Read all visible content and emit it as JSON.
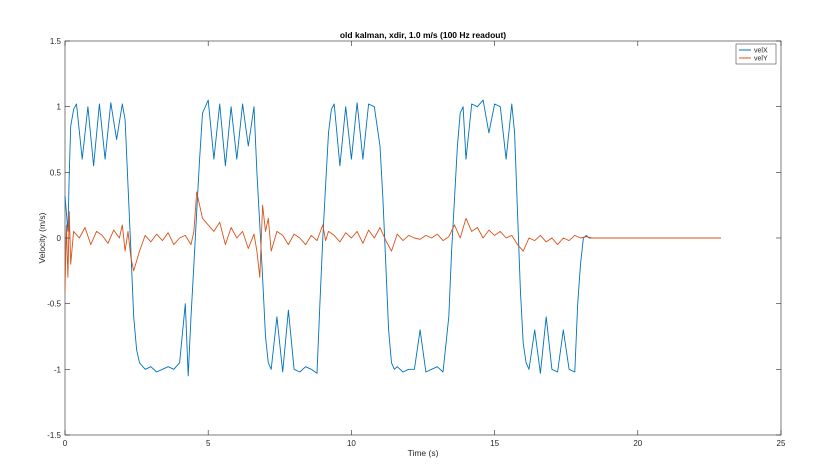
{
  "chart_data": {
    "type": "line",
    "title": "old kalman, xdir, 1.0 m/s (100 Hz readout)",
    "xlabel": "Time (s)",
    "ylabel": "Velocity (m/s)",
    "xlim": [
      0,
      25
    ],
    "ylim": [
      -1.5,
      1.5
    ],
    "xticks": [
      0,
      5,
      10,
      15,
      20,
      25
    ],
    "yticks": [
      -1.5,
      -1,
      -0.5,
      0,
      0.5,
      1,
      1.5
    ],
    "xtick_labels": [
      "0",
      "5",
      "10",
      "15",
      "20",
      "25"
    ],
    "ytick_labels": [
      "-1.5",
      "-1",
      "-0.5",
      "0",
      "0.5",
      "1",
      "1.5"
    ],
    "grid": false,
    "legend": {
      "placement": "top-right"
    },
    "series": [
      {
        "name": "velX",
        "color": "#0072BD",
        "x": [
          0,
          0.1,
          0.15,
          0.2,
          0.3,
          0.4,
          0.6,
          0.8,
          1.0,
          1.2,
          1.4,
          1.6,
          1.8,
          2.0,
          2.1,
          2.2,
          2.3,
          2.4,
          2.5,
          2.6,
          2.8,
          3.0,
          3.2,
          3.4,
          3.6,
          3.8,
          4.0,
          4.2,
          4.3,
          4.4,
          4.5,
          4.6,
          4.7,
          4.8,
          5.0,
          5.2,
          5.4,
          5.6,
          5.8,
          6.0,
          6.2,
          6.4,
          6.6,
          6.7,
          6.8,
          6.9,
          7.0,
          7.1,
          7.2,
          7.4,
          7.6,
          7.8,
          8.0,
          8.2,
          8.4,
          8.6,
          8.8,
          8.9,
          9.0,
          9.1,
          9.2,
          9.3,
          9.4,
          9.6,
          9.8,
          10.0,
          10.2,
          10.4,
          10.6,
          10.8,
          11.0,
          11.1,
          11.2,
          11.3,
          11.4,
          11.5,
          11.6,
          11.8,
          12.0,
          12.2,
          12.4,
          12.6,
          12.8,
          13.0,
          13.2,
          13.4,
          13.5,
          13.6,
          13.7,
          13.8,
          13.9,
          14.0,
          14.2,
          14.4,
          14.6,
          14.8,
          15.0,
          15.2,
          15.4,
          15.6,
          15.7,
          15.8,
          15.9,
          16.0,
          16.1,
          16.2,
          16.4,
          16.6,
          16.8,
          17.0,
          17.2,
          17.4,
          17.6,
          17.8,
          17.9,
          18.0,
          18.1,
          18.2,
          18.3,
          18.4,
          20.0,
          22.9
        ],
        "values": [
          0.32,
          0.05,
          0.5,
          0.85,
          0.98,
          1.02,
          0.6,
          1.0,
          0.55,
          1.02,
          0.6,
          1.03,
          0.75,
          1.02,
          0.9,
          0.4,
          -0.1,
          -0.6,
          -0.85,
          -0.95,
          -1.0,
          -0.98,
          -1.02,
          -1.0,
          -0.98,
          -1.0,
          -0.95,
          -0.5,
          -1.05,
          -0.6,
          -0.2,
          0.2,
          0.6,
          0.95,
          1.05,
          0.6,
          1.02,
          0.55,
          1.0,
          0.6,
          1.02,
          0.7,
          1.0,
          0.5,
          0.1,
          -0.3,
          -0.75,
          -0.95,
          -1.0,
          -0.6,
          -1.02,
          -0.55,
          -1.0,
          -1.02,
          -0.98,
          -1.0,
          -1.03,
          -0.5,
          0.0,
          0.4,
          0.8,
          0.98,
          1.02,
          0.55,
          1.0,
          0.6,
          1.03,
          0.6,
          1.02,
          1.0,
          0.7,
          0.3,
          -0.2,
          -0.7,
          -0.95,
          -1.0,
          -0.98,
          -1.02,
          -1.0,
          -1.0,
          -0.7,
          -1.02,
          -1.0,
          -0.98,
          -1.02,
          -0.6,
          -0.1,
          0.3,
          0.7,
          0.95,
          1.0,
          0.6,
          1.02,
          1.0,
          1.05,
          0.8,
          1.02,
          1.0,
          0.6,
          1.02,
          0.8,
          0.2,
          -0.4,
          -0.8,
          -0.95,
          -1.0,
          -0.7,
          -1.03,
          -0.6,
          -1.0,
          -1.02,
          -0.7,
          -1.0,
          -1.02,
          -0.5,
          -0.2,
          0.0,
          0.02,
          0.0,
          0.0,
          0.0,
          0.0
        ]
      },
      {
        "name": "velY",
        "color": "#D95319",
        "x": [
          0,
          0.05,
          0.1,
          0.15,
          0.2,
          0.3,
          0.5,
          0.7,
          0.9,
          1.1,
          1.3,
          1.5,
          1.7,
          1.9,
          2.0,
          2.1,
          2.2,
          2.3,
          2.4,
          2.6,
          2.8,
          3.0,
          3.2,
          3.4,
          3.6,
          3.8,
          4.0,
          4.2,
          4.4,
          4.5,
          4.6,
          4.7,
          4.8,
          5.0,
          5.2,
          5.4,
          5.6,
          5.8,
          6.0,
          6.2,
          6.4,
          6.6,
          6.7,
          6.8,
          6.9,
          7.0,
          7.1,
          7.2,
          7.4,
          7.6,
          7.8,
          8.0,
          8.2,
          8.4,
          8.6,
          8.8,
          9.0,
          9.1,
          9.2,
          9.4,
          9.6,
          9.8,
          10.0,
          10.2,
          10.4,
          10.6,
          10.8,
          11.0,
          11.2,
          11.4,
          11.6,
          11.8,
          12.0,
          12.2,
          12.4,
          12.6,
          12.8,
          13.0,
          13.2,
          13.4,
          13.6,
          13.8,
          14.0,
          14.2,
          14.4,
          14.6,
          14.8,
          15.0,
          15.2,
          15.4,
          15.6,
          15.8,
          16.0,
          16.2,
          16.4,
          16.6,
          16.8,
          17.0,
          17.2,
          17.4,
          17.6,
          17.8,
          18.0,
          18.2,
          18.4,
          20.0,
          22.9
        ],
        "values": [
          -0.4,
          0.1,
          -0.3,
          0.2,
          -0.2,
          0.05,
          0.0,
          0.08,
          -0.05,
          0.05,
          0.02,
          -0.04,
          0.06,
          0.0,
          0.1,
          -0.1,
          0.05,
          -0.15,
          -0.25,
          -0.1,
          0.02,
          -0.03,
          0.03,
          -0.02,
          0.04,
          -0.05,
          0.0,
          0.02,
          -0.05,
          0.05,
          0.35,
          0.25,
          0.15,
          0.1,
          0.05,
          0.12,
          -0.05,
          0.08,
          0.0,
          0.05,
          -0.08,
          0.03,
          -0.1,
          -0.3,
          0.25,
          0.05,
          0.15,
          -0.1,
          0.05,
          0.02,
          -0.05,
          0.03,
          0.0,
          -0.05,
          0.02,
          -0.02,
          0.1,
          -0.02,
          0.05,
          0.02,
          -0.03,
          0.04,
          0.0,
          0.05,
          -0.04,
          0.06,
          0.0,
          0.08,
          -0.02,
          -0.1,
          0.03,
          -0.02,
          0.02,
          0.0,
          -0.01,
          0.02,
          0.0,
          0.03,
          -0.02,
          0.01,
          0.1,
          0.0,
          0.15,
          0.05,
          0.08,
          0.0,
          0.06,
          0.02,
          0.05,
          0.0,
          0.02,
          -0.05,
          -0.1,
          0.0,
          -0.02,
          0.02,
          -0.03,
          0.0,
          -0.05,
          0.0,
          -0.02,
          0.02,
          0.0,
          0.01,
          0.0,
          0.0,
          0.0
        ]
      }
    ]
  }
}
